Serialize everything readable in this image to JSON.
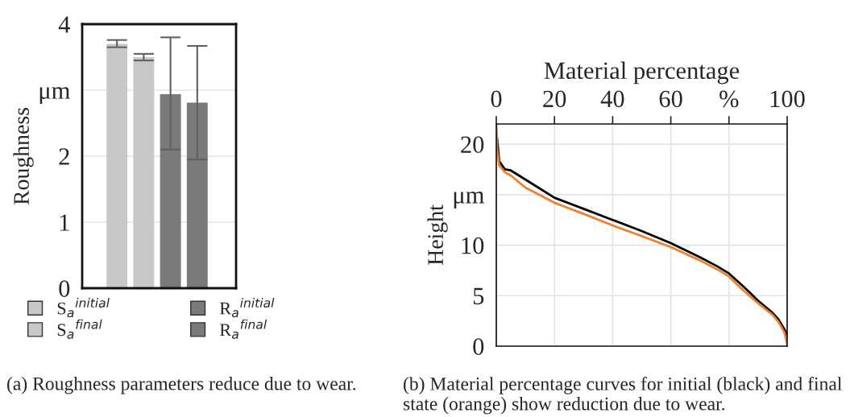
{
  "chart_data": [
    {
      "type": "bar",
      "ylabel": "Roughness",
      "categories": [
        null,
        null,
        null,
        null
      ],
      "ylim": [
        0,
        4
      ],
      "yticks": [
        0,
        1,
        2,
        {
          "value": 3,
          "label": "μm"
        },
        4
      ],
      "grid": "y",
      "legend": "bottom",
      "annotations": [
        "(a) Roughness parameters reduce due to wear."
      ],
      "series": [
        {
          "name": "S$_{a}$$^{initial}$",
          "color": "#c8c8c8",
          "values": [
            3.7,
            null,
            null,
            null
          ],
          "errors": [
            [
              3.65,
              3.76
            ],
            null,
            null,
            null
          ]
        },
        {
          "name": "S$_{a}$$^{final}$",
          "color": "#c8c8c8",
          "values": [
            null,
            3.5,
            null,
            null
          ],
          "errors": [
            null,
            [
              3.45,
              3.55
            ],
            null,
            null
          ]
        },
        {
          "name": "R$_{a}$$^{initial}$",
          "color": "#7a7a7a",
          "values": [
            null,
            null,
            2.94,
            null
          ],
          "errors": [
            null,
            null,
            [
              2.1,
              3.8
            ],
            null
          ]
        },
        {
          "name": "R$_{a}$$^{final}$",
          "color": "#7a7a7a",
          "values": [
            null,
            null,
            null,
            2.81
          ],
          "errors": [
            null,
            null,
            null,
            [
              1.95,
              3.67
            ]
          ]
        }
      ]
    },
    {
      "type": "line",
      "xlabel": "Material percentage",
      "ylabel": "Height",
      "xlim": [
        0,
        100
      ],
      "xticks": [
        0,
        20,
        40,
        60,
        {
          "value": 80,
          "label": "%"
        },
        100
      ],
      "ylim": [
        0,
        22
      ],
      "yticks": [
        0,
        5,
        10,
        {
          "value": 15,
          "label": "μm"
        },
        20
      ],
      "grid": true,
      "annotations": [
        "(b) Material percentage curves for initial (black) and final state (orange) show reduction due to wear."
      ],
      "series": [
        {
          "color": "#000000",
          "x": [
            0,
            0.3,
            1,
            3,
            5,
            10,
            20,
            30,
            40,
            50,
            60,
            70,
            76,
            80,
            85,
            90,
            95,
            97,
            99,
            100
          ],
          "values": [
            21,
            20.5,
            18.3,
            17.5,
            17.4,
            16.5,
            14.7,
            13.6,
            12.5,
            11.4,
            10.2,
            8.8,
            7.9,
            7.2,
            5.9,
            4.5,
            3.3,
            2.65,
            1.7,
            1.05
          ]
        },
        {
          "color": "#f07f2f",
          "x": [
            0,
            0.3,
            1,
            3,
            5,
            10,
            20,
            30,
            40,
            50,
            60,
            70,
            76,
            80,
            85,
            90,
            95,
            97,
            99,
            100,
            100
          ],
          "values": [
            22,
            19.5,
            17.9,
            17.2,
            16.9,
            15.7,
            14.2,
            13.1,
            11.95,
            10.9,
            9.8,
            8.5,
            7.6,
            6.9,
            5.5,
            4.25,
            3.1,
            2.4,
            1.4,
            0.25,
            0
          ]
        }
      ]
    }
  ]
}
